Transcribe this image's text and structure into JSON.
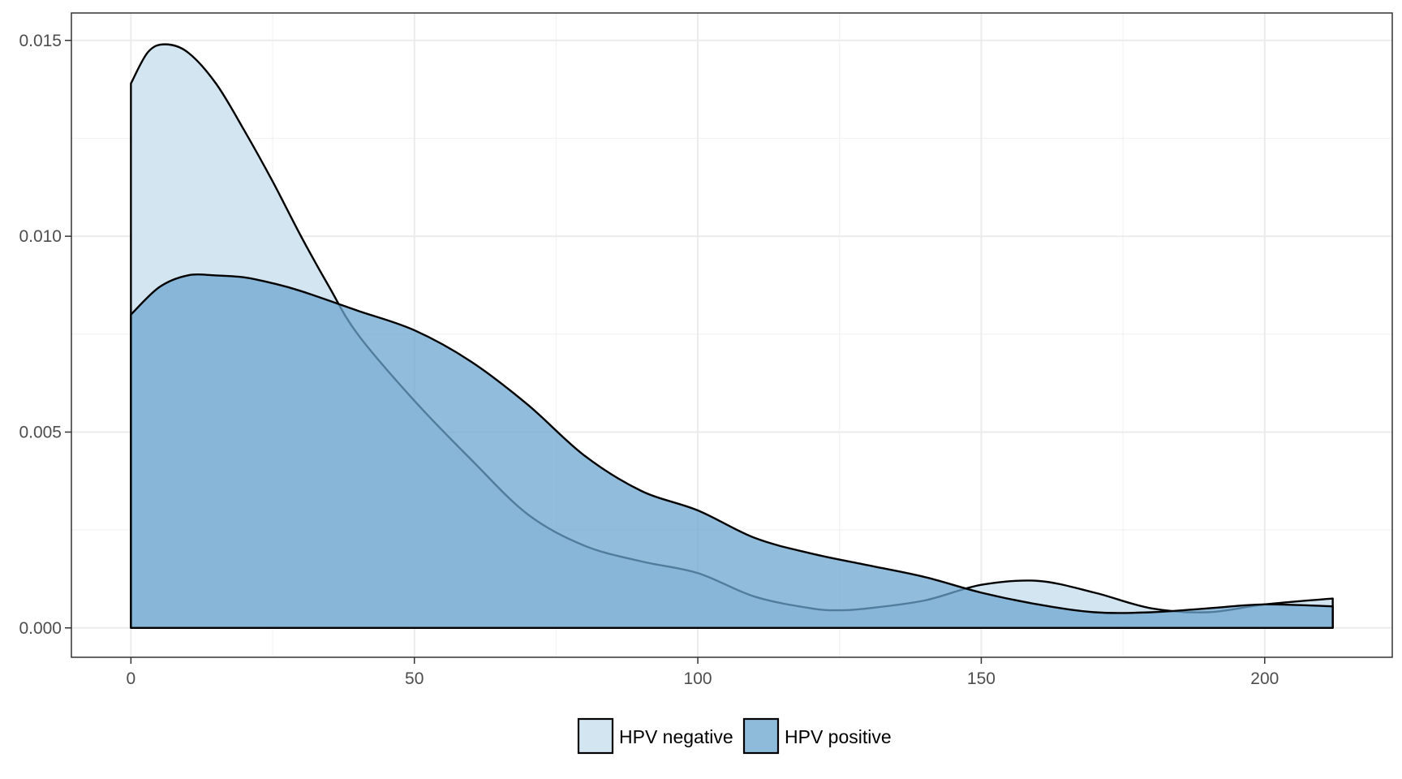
{
  "chart_data": {
    "type": "area",
    "title": "",
    "xlabel": "",
    "ylabel": "",
    "xlim": [
      -10.5,
      222.5
    ],
    "ylim": [
      -0.00075,
      0.0157
    ],
    "x_ticks": [
      0,
      50,
      100,
      150,
      200
    ],
    "x_tick_labels": [
      "0",
      "50",
      "100",
      "150",
      "200"
    ],
    "y_ticks": [
      0.0,
      0.005,
      0.01,
      0.015
    ],
    "y_tick_labels": [
      "0.000",
      "0.005",
      "0.010",
      "0.015"
    ],
    "grid": true,
    "legend_position": "bottom",
    "series": [
      {
        "name": "HPV negative",
        "color": "#d3e5f1",
        "opacity": 1,
        "x": [
          0,
          3,
          6,
          10,
          15,
          20,
          25,
          30,
          35,
          40,
          50,
          60,
          70,
          80,
          90,
          100,
          110,
          120,
          125,
          130,
          140,
          150,
          160,
          170,
          180,
          190,
          200,
          212
        ],
        "y": [
          0.0139,
          0.0147,
          0.0149,
          0.0147,
          0.0139,
          0.0127,
          0.0114,
          0.01,
          0.0087,
          0.0075,
          0.0058,
          0.0043,
          0.0029,
          0.0021,
          0.0017,
          0.0014,
          0.0008,
          0.0005,
          0.00045,
          0.0005,
          0.0007,
          0.0011,
          0.0012,
          0.0009,
          0.0005,
          0.0004,
          0.0006,
          0.00075
        ]
      },
      {
        "name": "HPV positive",
        "color": "#6ea6cf",
        "opacity": 0.75,
        "x": [
          0,
          5,
          10,
          15,
          20,
          25,
          30,
          40,
          50,
          60,
          70,
          80,
          90,
          100,
          110,
          120,
          130,
          140,
          150,
          160,
          170,
          180,
          190,
          200,
          212
        ],
        "y": [
          0.008,
          0.0087,
          0.009,
          0.009,
          0.00895,
          0.0088,
          0.0086,
          0.0081,
          0.0076,
          0.0068,
          0.0057,
          0.0044,
          0.0035,
          0.003,
          0.0023,
          0.0019,
          0.0016,
          0.0013,
          0.0009,
          0.0006,
          0.0004,
          0.0004,
          0.0005,
          0.0006,
          0.00055
        ]
      }
    ]
  },
  "legend": {
    "items": [
      {
        "label": "HPV negative",
        "color": "#d3e5f1"
      },
      {
        "label": "HPV positive",
        "color": "#8fbbda"
      }
    ]
  }
}
